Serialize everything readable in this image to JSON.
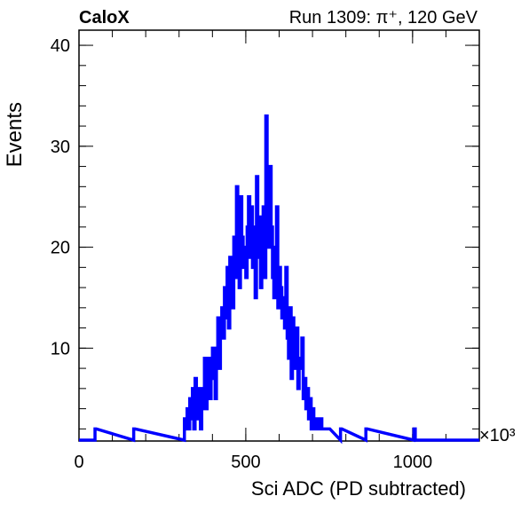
{
  "header": {
    "left_label": "CaloX",
    "right_label": "Run 1309:   π⁺, 120 GeV"
  },
  "chart_data": {
    "type": "histogram-step",
    "title": "",
    "xlabel": "Sci ADC (PD subtracted)",
    "ylabel": "Events",
    "x_multiplier_label": "×10³",
    "xlim": [
      0,
      1200
    ],
    "ylim": [
      0.8,
      41.5
    ],
    "x_ticks": [
      0,
      500,
      1000
    ],
    "x_tick_labels": [
      "0",
      "500",
      "1000"
    ],
    "y_ticks": [
      10,
      20,
      30,
      40
    ],
    "y_tick_labels": [
      "10",
      "20",
      "30",
      "40"
    ],
    "x_minor_step": 100,
    "y_minor_step": 2,
    "grid": false,
    "legend": "none",
    "series_color": "#0000ff",
    "bin_width": 4,
    "x_unit_note": "bin_start values in thousands of ADC counts",
    "bin_start": [
      48,
      164,
      316,
      320,
      324,
      328,
      332,
      336,
      340,
      344,
      348,
      352,
      356,
      360,
      364,
      368,
      372,
      376,
      380,
      384,
      388,
      392,
      396,
      400,
      404,
      408,
      412,
      416,
      420,
      424,
      428,
      432,
      436,
      440,
      444,
      448,
      452,
      456,
      460,
      464,
      468,
      472,
      476,
      480,
      484,
      488,
      492,
      496,
      500,
      504,
      508,
      512,
      516,
      520,
      524,
      528,
      532,
      536,
      540,
      544,
      548,
      552,
      556,
      560,
      564,
      568,
      572,
      576,
      580,
      584,
      588,
      592,
      596,
      600,
      604,
      608,
      612,
      616,
      620,
      624,
      628,
      632,
      636,
      640,
      644,
      648,
      652,
      656,
      660,
      664,
      668,
      672,
      676,
      680,
      684,
      688,
      692,
      696,
      700,
      704,
      708,
      712,
      716,
      720,
      724,
      728,
      732,
      736,
      740,
      744,
      748,
      784,
      860,
      1004
    ],
    "counts": [
      2,
      2,
      3,
      2,
      4,
      2,
      5,
      3,
      6,
      2,
      7,
      4,
      3,
      6,
      2,
      4,
      6,
      9,
      4,
      6,
      9,
      5,
      7,
      10,
      8,
      5,
      10,
      13,
      8,
      12,
      14,
      11,
      16,
      13,
      18,
      12,
      19,
      15,
      14,
      21,
      17,
      26,
      22,
      16,
      25,
      21,
      18,
      20,
      17,
      22,
      25,
      19,
      24,
      18,
      22,
      15,
      27,
      19,
      23,
      16,
      18,
      24,
      17,
      33,
      26,
      20,
      28,
      22,
      17,
      15,
      20,
      24,
      14,
      18,
      16,
      13,
      15,
      12,
      18,
      11,
      9,
      14,
      7,
      13,
      10,
      8,
      12,
      6,
      9,
      8,
      11,
      5,
      7,
      4,
      6,
      3,
      5,
      2,
      4,
      3,
      2,
      3,
      2,
      2,
      3,
      2,
      2,
      2,
      2,
      2,
      2,
      2,
      2,
      2
    ]
  }
}
